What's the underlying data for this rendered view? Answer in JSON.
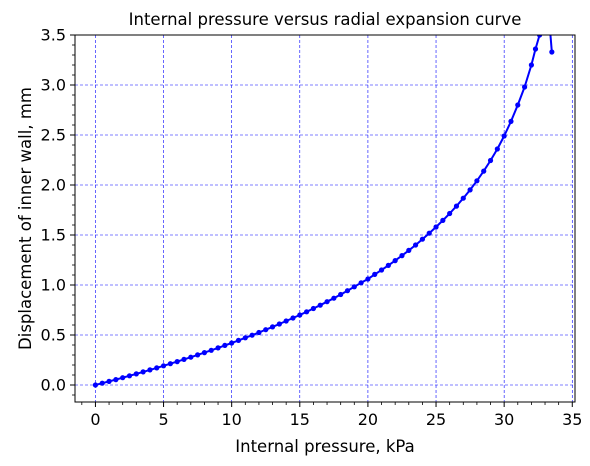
{
  "chart_data": {
    "type": "line",
    "title": "Internal pressure versus radial expansion curve",
    "xlabel": "Internal pressure, kPa",
    "ylabel": "Displacement of inner wall, mm",
    "xlim": [
      -1.5,
      35.2
    ],
    "ylim": [
      -0.17,
      3.5
    ],
    "x_ticks": [
      0,
      5,
      10,
      15,
      20,
      25,
      30,
      35
    ],
    "x_tick_labels": [
      "0",
      "5",
      "10",
      "15",
      "20",
      "25",
      "30",
      "35"
    ],
    "y_ticks": [
      0.0,
      0.5,
      1.0,
      1.5,
      2.0,
      2.5,
      3.0,
      3.5
    ],
    "y_tick_labels": [
      "0.0",
      "0.5",
      "1.0",
      "1.5",
      "2.0",
      "2.5",
      "3.0",
      "3.5"
    ],
    "grid": true,
    "grid_style": "dashed",
    "grid_color": "#0000ff",
    "line_color": "#0000ff",
    "marker": "circle",
    "series": [
      {
        "x": [
          0,
          0.5,
          1,
          1.5,
          2,
          2.5,
          3,
          3.5,
          4,
          4.5,
          5,
          5.5,
          6,
          6.5,
          7,
          7.5,
          8,
          8.5,
          9,
          9.5,
          10,
          10.5,
          11,
          11.5,
          12,
          12.5,
          13,
          13.5,
          14,
          14.5,
          15,
          15.5,
          16,
          16.5,
          17,
          17.5,
          18,
          18.5,
          19,
          19.5,
          20,
          20.5,
          21,
          21.5,
          22,
          22.5,
          23,
          23.5,
          24,
          24.5,
          25,
          25.5,
          26,
          26.5,
          27,
          27.5,
          28,
          28.5,
          29,
          29.5,
          30,
          30.5,
          31,
          31.5,
          32,
          32.3,
          32.6,
          32.9,
          33.2,
          33.5
        ],
        "y": [
          0,
          0.018,
          0.036,
          0.054,
          0.073,
          0.092,
          0.111,
          0.131,
          0.151,
          0.171,
          0.192,
          0.213,
          0.234,
          0.256,
          0.278,
          0.301,
          0.324,
          0.347,
          0.371,
          0.396,
          0.42,
          0.446,
          0.472,
          0.498,
          0.525,
          0.553,
          0.581,
          0.61,
          0.64,
          0.67,
          0.7,
          0.732,
          0.765,
          0.798,
          0.833,
          0.868,
          0.905,
          0.943,
          0.982,
          1.022,
          1.06,
          1.106,
          1.15,
          1.196,
          1.244,
          1.294,
          1.346,
          1.4,
          1.458,
          1.518,
          1.58,
          1.646,
          1.715,
          1.789,
          1.868,
          1.951,
          2.042,
          2.139,
          2.245,
          2.36,
          2.49,
          2.636,
          2.8,
          2.98,
          3.2,
          3.36,
          3.5,
          3.65,
          3.83,
          3.33
        ]
      }
    ]
  }
}
